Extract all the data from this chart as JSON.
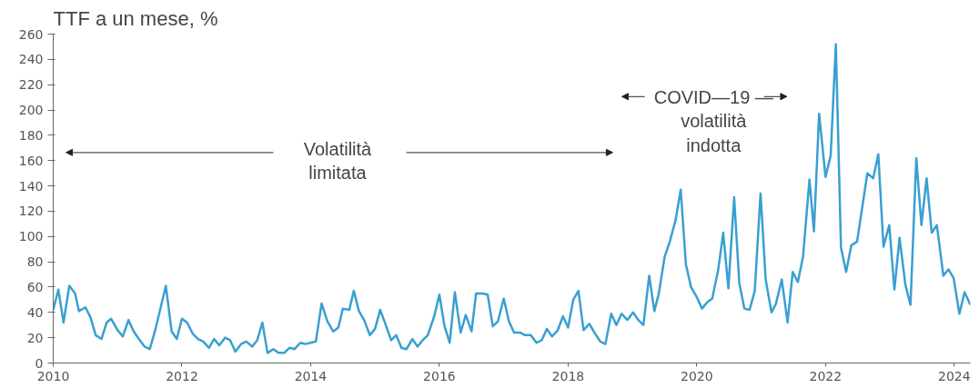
{
  "chart_data": {
    "type": "line",
    "title": "TTF a un mese, %",
    "x": [
      2010.0,
      2010.08,
      2010.16,
      2010.25,
      2010.34,
      2010.4,
      2010.5,
      2010.58,
      2010.66,
      2010.75,
      2010.83,
      2010.9,
      2011.0,
      2011.08,
      2011.17,
      2011.25,
      2011.33,
      2011.42,
      2011.5,
      2011.58,
      2011.67,
      2011.75,
      2011.84,
      2011.92,
      2012.0,
      2012.08,
      2012.17,
      2012.25,
      2012.33,
      2012.42,
      2012.5,
      2012.58,
      2012.67,
      2012.75,
      2012.83,
      2012.92,
      2013.0,
      2013.09,
      2013.17,
      2013.25,
      2013.33,
      2013.42,
      2013.5,
      2013.59,
      2013.67,
      2013.75,
      2013.84,
      2013.92,
      2014.0,
      2014.08,
      2014.17,
      2014.26,
      2014.35,
      2014.43,
      2014.5,
      2014.6,
      2014.67,
      2014.75,
      2014.83,
      2014.92,
      2015.0,
      2015.08,
      2015.16,
      2015.25,
      2015.33,
      2015.41,
      2015.49,
      2015.58,
      2015.66,
      2015.74,
      2015.82,
      2015.92,
      2016.0,
      2016.08,
      2016.16,
      2016.24,
      2016.33,
      2016.41,
      2016.5,
      2016.57,
      2016.67,
      2016.75,
      2016.83,
      2016.91,
      2017.0,
      2017.08,
      2017.16,
      2017.26,
      2017.33,
      2017.42,
      2017.51,
      2017.59,
      2017.67,
      2017.75,
      2017.84,
      2017.92,
      2018.0,
      2018.08,
      2018.16,
      2018.24,
      2018.33,
      2018.41,
      2018.5,
      2018.58,
      2018.67,
      2018.75,
      2018.83,
      2018.92,
      2019.01,
      2019.09,
      2019.17,
      2019.26,
      2019.34,
      2019.41,
      2019.5,
      2019.58,
      2019.67,
      2019.75,
      2019.83,
      2019.91,
      2020.0,
      2020.08,
      2020.16,
      2020.24,
      2020.33,
      2020.41,
      2020.49,
      2020.58,
      2020.66,
      2020.74,
      2020.82,
      2020.9,
      2020.99,
      2021.07,
      2021.16,
      2021.23,
      2021.32,
      2021.41,
      2021.49,
      2021.57,
      2021.65,
      2021.75,
      2021.82,
      2021.9,
      2022.0,
      2022.08,
      2022.16,
      2022.24,
      2022.32,
      2022.4,
      2022.49,
      2022.57,
      2022.65,
      2022.74,
      2022.82,
      2022.9,
      2022.99,
      2023.07,
      2023.15,
      2023.24,
      2023.32,
      2023.41,
      2023.49,
      2023.57,
      2023.65,
      2023.73,
      2023.83,
      2023.91,
      2023.99,
      2024.08,
      2024.16,
      2024.25
    ],
    "series": [
      {
        "color": "#3a9fd1",
        "values": [
          42,
          58,
          32,
          61,
          55,
          41,
          44,
          36,
          22,
          19,
          32,
          35,
          26,
          21,
          34,
          25,
          19,
          13,
          11,
          25,
          44,
          61,
          25,
          19,
          35,
          32,
          23,
          19,
          17,
          12,
          19,
          14,
          20,
          18,
          9,
          15,
          17,
          13,
          18,
          32,
          8,
          11,
          8,
          8,
          12,
          11,
          16,
          15,
          16,
          17,
          47,
          33,
          25,
          28,
          43,
          42,
          57,
          41,
          34,
          22,
          27,
          42,
          31,
          18,
          22,
          12,
          11,
          19,
          13,
          18,
          22,
          37,
          54,
          29,
          16,
          56,
          24,
          38,
          25,
          55,
          55,
          54,
          29,
          33,
          51,
          33,
          24,
          24,
          22,
          22,
          16,
          18,
          27,
          21,
          26,
          37,
          28,
          50,
          57,
          26,
          31,
          24,
          17,
          15,
          39,
          30,
          39,
          34,
          40,
          34,
          30,
          69,
          41,
          55,
          84,
          96,
          113,
          137,
          78,
          60,
          52,
          43,
          48,
          51,
          73,
          103,
          59,
          131,
          63,
          43,
          42,
          57,
          134,
          66,
          40,
          47,
          66,
          32,
          72,
          64,
          84,
          145,
          104,
          197,
          147,
          164,
          252,
          91,
          72,
          93,
          96,
          123,
          150,
          146,
          165,
          92,
          109,
          58,
          99,
          62,
          46,
          162,
          109,
          146,
          103,
          109,
          69,
          74,
          67,
          39,
          56,
          46
        ]
      }
    ],
    "xlim": [
      2010,
      2024.25
    ],
    "xticks": [
      2010,
      2012,
      2014,
      2016,
      2018,
      2020,
      2022,
      2024
    ],
    "ylim": [
      0,
      260
    ],
    "yticks": [
      0,
      20,
      40,
      60,
      80,
      100,
      120,
      140,
      160,
      180,
      200,
      220,
      240,
      260
    ],
    "grid": false,
    "annotations": [
      "Volatilità\nlimitata",
      "COVID—19 —\nvolatilità\nindotta"
    ]
  }
}
